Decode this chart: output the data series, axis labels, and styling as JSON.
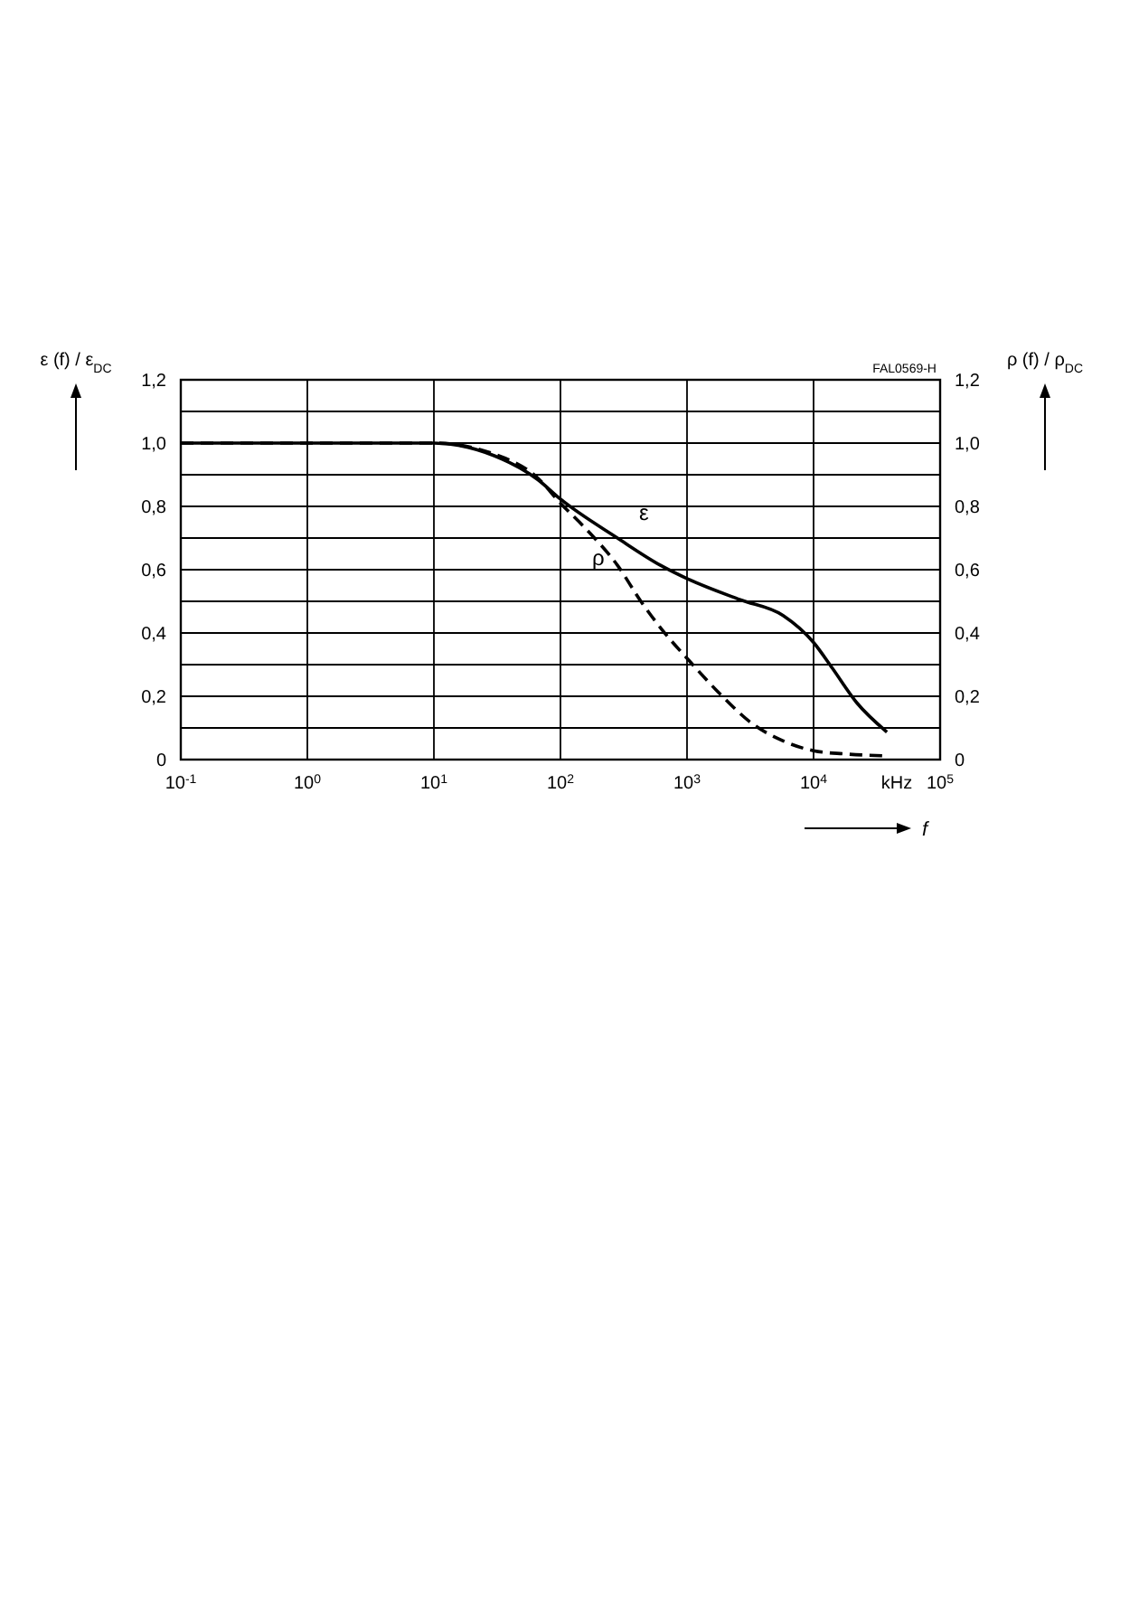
{
  "chart_data": {
    "type": "line",
    "ylabel": "ε (f) / ε$_{DC}$",
    "y2label": "ρ (f) / ρ$_{DC}$",
    "xlabel": "f",
    "annotations": [
      "FAL0569-H",
      "kHz"
    ],
    "log": "x",
    "grid": true,
    "xlim": [
      0.1,
      100000
    ],
    "xticks": [
      {
        "value": 0.1,
        "label": "10$^{-1}$"
      },
      {
        "value": 1,
        "label": "10$^{0}$"
      },
      {
        "value": 10,
        "label": "10$^{1}$"
      },
      {
        "value": 100,
        "label": "10$^{2}$"
      },
      {
        "value": 1000,
        "label": "10$^{3}$"
      },
      {
        "value": 10000,
        "label": "10$^{4}$"
      },
      {
        "value": 100000,
        "label": "10$^{5}$"
      }
    ],
    "ylim": [
      0,
      1.2
    ],
    "yticks": [
      {
        "value": 0,
        "label": "0"
      },
      {
        "value": 0.1,
        "label": null
      },
      {
        "value": 0.2,
        "label": "0,2"
      },
      {
        "value": 0.3,
        "label": null
      },
      {
        "value": 0.4,
        "label": "0,4"
      },
      {
        "value": 0.5,
        "label": null
      },
      {
        "value": 0.6,
        "label": "0,6"
      },
      {
        "value": 0.7,
        "label": null
      },
      {
        "value": 0.8,
        "label": "0,8"
      },
      {
        "value": 0.9,
        "label": null
      },
      {
        "value": 1.0,
        "label": "1,0"
      },
      {
        "value": 1.1,
        "label": null
      },
      {
        "value": 1.2,
        "label": "1,2"
      }
    ],
    "y2lim": [
      0,
      1.2
    ],
    "y2ticks": [
      {
        "value": 0,
        "label": "0"
      },
      {
        "value": 0.2,
        "label": "0,2"
      },
      {
        "value": 0.4,
        "label": "0,4"
      },
      {
        "value": 0.6,
        "label": "0,6"
      },
      {
        "value": 0.8,
        "label": "0,8"
      },
      {
        "value": 1.0,
        "label": "1,0"
      },
      {
        "value": 1.2,
        "label": "1,2"
      }
    ],
    "series": [
      {
        "name": "ε",
        "color": "#000000",
        "line_style": "solid",
        "x": [
          0.1,
          10,
          30,
          66,
          100,
          282,
          617,
          1000,
          2630,
          5750,
          10000,
          14000,
          21900,
          38000
        ],
        "values": [
          1.0,
          1.0,
          0.96,
          0.885,
          0.823,
          0.7,
          0.614,
          0.572,
          0.505,
          0.455,
          0.37,
          0.29,
          0.18,
          0.087
        ]
      },
      {
        "name": "ρ",
        "color": "#000000",
        "line_style": "dashed",
        "axis": "y2",
        "x": [
          0.1,
          10,
          30,
          66,
          100,
          158,
          282,
          437,
          676,
          1000,
          1860,
          3240,
          5750,
          10000,
          17400,
          37000
        ],
        "values": [
          1.0,
          1.0,
          0.965,
          0.89,
          0.81,
          0.73,
          0.614,
          0.497,
          0.397,
          0.32,
          0.204,
          0.115,
          0.059,
          0.028,
          0.018,
          0.012
        ]
      }
    ]
  }
}
